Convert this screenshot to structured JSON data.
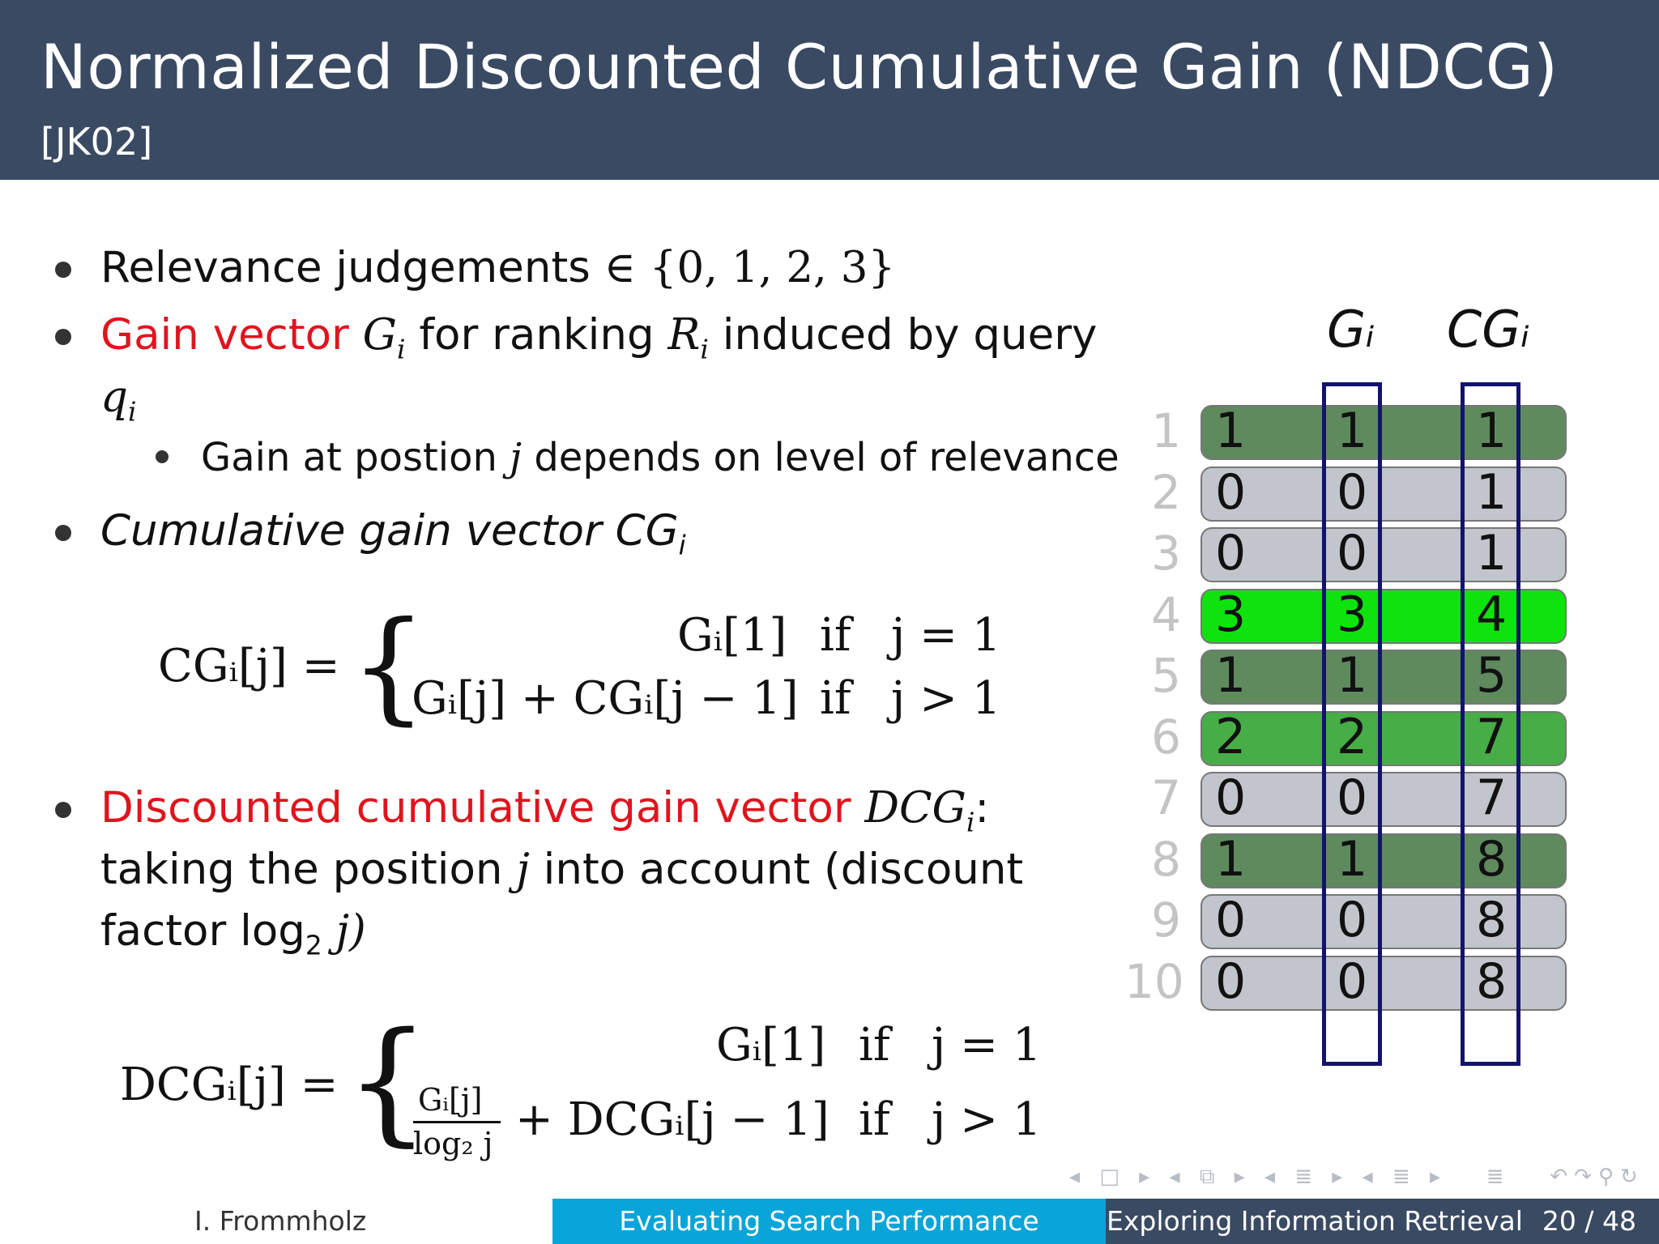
{
  "slide": {
    "title": "Normalized Discounted Cumulative Gain (NDCG)",
    "subtitle": "[JK02]"
  },
  "bullets": {
    "b1_text": "Relevance judgements ",
    "b1_math": "∈ {0, 1, 2, 3}",
    "b2_red": "Gain vector ",
    "b2_g": "G",
    "b2_g_sub": "i",
    "b2_mid": " for ranking ",
    "b2_r": "R",
    "b2_r_sub": "i",
    "b2_end": " induced by query",
    "b2_q": "q",
    "b2_q_sub": "i",
    "b2_sub_a": "Gain at postion ",
    "b2_sub_j": "j",
    "b2_sub_b": " depends on level of relevance",
    "b3_text": "Cumulative gain vector CG",
    "b3_sub": "i",
    "b4_red": "Discounted cumulative gain vector ",
    "b4_dcg": "DCG",
    "b4_dcg_sub": "i",
    "b4_colon": ":",
    "b4_l2a": "taking the position ",
    "b4_l2j": "j",
    "b4_l2b": " into account (discount",
    "b4_l3a": "factor log",
    "b4_l3sub": "2",
    "b4_l3b": " j)"
  },
  "formulas": {
    "cg_lhs": "CGᵢ[j] =",
    "cg_case1": "Gᵢ[1]",
    "cg_case2": "Gᵢ[j] + CGᵢ[j − 1]",
    "dcg_lhs": "DCGᵢ[j] =",
    "dcg_case1": "Gᵢ[1]",
    "dcg_frac_num": "Gᵢ[j]",
    "dcg_frac_den": "log₂ j",
    "dcg_case2_rest": "+ DCGᵢ[j − 1]",
    "if": "if",
    "cond1": "j = 1",
    "cond2": "j > 1"
  },
  "table": {
    "header_g": "Gᵢ",
    "header_cg": "CGᵢ",
    "rows": [
      {
        "n": "1",
        "rel": "1",
        "g": "1",
        "cg": "1",
        "color": "#5e8a5e"
      },
      {
        "n": "2",
        "rel": "0",
        "g": "0",
        "cg": "1",
        "color": "#c2c5cc"
      },
      {
        "n": "3",
        "rel": "0",
        "g": "0",
        "cg": "1",
        "color": "#c2c5cc"
      },
      {
        "n": "4",
        "rel": "3",
        "g": "3",
        "cg": "4",
        "color": "#0ee30e"
      },
      {
        "n": "5",
        "rel": "1",
        "g": "1",
        "cg": "5",
        "color": "#5e8a5e"
      },
      {
        "n": "6",
        "rel": "2",
        "g": "2",
        "cg": "7",
        "color": "#47ad47"
      },
      {
        "n": "7",
        "rel": "0",
        "g": "0",
        "cg": "7",
        "color": "#c2c5cc"
      },
      {
        "n": "8",
        "rel": "1",
        "g": "1",
        "cg": "8",
        "color": "#5e8a5e"
      },
      {
        "n": "9",
        "rel": "0",
        "g": "0",
        "cg": "8",
        "color": "#c2c5cc"
      },
      {
        "n": "10",
        "rel": "0",
        "g": "0",
        "cg": "8",
        "color": "#c2c5cc"
      }
    ]
  },
  "footer": {
    "author": "I. Frommholz",
    "section": "Evaluating Search Performance",
    "course": "Exploring Information Retrieval",
    "page": "20 / 48"
  },
  "colors": {
    "header_bg": "#3a4a63",
    "red": "#e0141e",
    "footer_mid": "#0aa5d8",
    "footer_right": "#3a4a63",
    "column_outline": "#13136e"
  }
}
